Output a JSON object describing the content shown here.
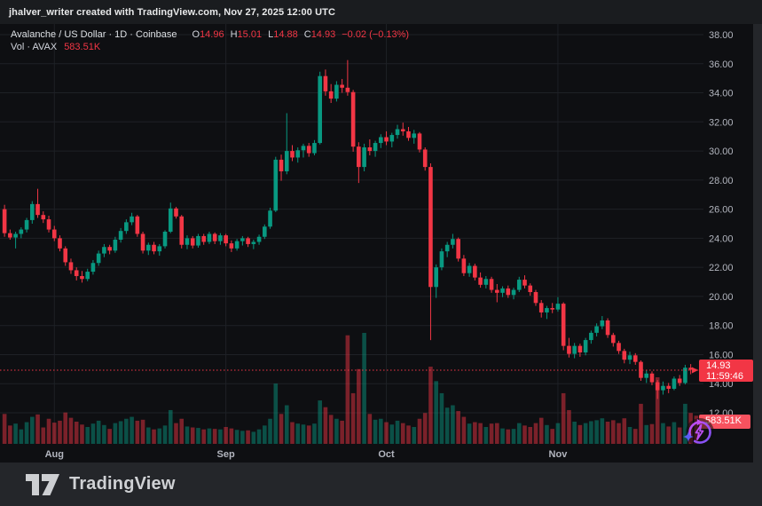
{
  "attribution": {
    "text": "jhalver_writer created with TradingView.com, Nov 27, 2025 12:00 UTC"
  },
  "legend": {
    "title": "Avalanche / US Dollar · 1D · Coinbase",
    "o_label": "O",
    "o_value": "14.96",
    "h_label": "H",
    "h_value": "15.01",
    "l_label": "L",
    "l_value": "14.88",
    "c_label": "C",
    "c_value": "14.93",
    "change": "−0.02 (−0.13%)",
    "vol_label": "Vol · AVAX",
    "vol_value": "583.51K"
  },
  "price_label": {
    "price": "14.93",
    "countdown": "11:59:46"
  },
  "volume_axis_label": {
    "value": "583.51K"
  },
  "footer": {
    "logo_text": "TradingView"
  },
  "colors": {
    "up": "#089981",
    "down": "#f23645",
    "vol_up": "rgba(8,153,129,0.48)",
    "vol_down": "rgba(242,54,69,0.48)",
    "grid": "#1e2126",
    "axis_text": "#b2b5be",
    "price_label_bg": "#f23645",
    "volume_label_bg": "#f7525f",
    "background": "#0e0f12",
    "frame": "#24262a"
  },
  "chart_data": {
    "type": "candlestick",
    "title": "Avalanche / US Dollar · 1D · Coinbase",
    "symbol": "AVAX/USD",
    "exchange": "Coinbase",
    "interval": "1D",
    "legend_last_values": {
      "open": 14.96,
      "high": 15.01,
      "low": 14.88,
      "close": 14.93,
      "change": -0.02,
      "change_pct": -0.13,
      "volume": "583.51K"
    },
    "y_axis": {
      "min": 12,
      "max": 38,
      "step": 2,
      "tick_labels": [
        "38.00",
        "36.00",
        "34.00",
        "32.00",
        "30.00",
        "28.00",
        "26.00",
        "24.00",
        "22.00",
        "20.00",
        "18.00",
        "16.00",
        "14.00",
        "12.00"
      ]
    },
    "x_axis": {
      "ticks": [
        {
          "label": "Aug",
          "index": 9
        },
        {
          "label": "Sep",
          "index": 40
        },
        {
          "label": "Oct",
          "index": 69
        },
        {
          "label": "Nov",
          "index": 100
        }
      ]
    },
    "last_price": 14.93,
    "countdown": "11:59:46",
    "grid": true,
    "series_format": [
      "open",
      "high",
      "low",
      "close",
      "volume_thousands"
    ],
    "candles": [
      [
        26.0,
        26.3,
        24.1,
        24.35,
        620
      ],
      [
        24.35,
        24.6,
        23.9,
        24.05,
        380
      ],
      [
        24.05,
        24.45,
        23.3,
        24.3,
        420
      ],
      [
        24.3,
        24.75,
        24.0,
        24.6,
        300
      ],
      [
        24.6,
        25.4,
        24.4,
        25.25,
        450
      ],
      [
        25.25,
        26.55,
        25.0,
        26.35,
        560
      ],
      [
        26.35,
        27.4,
        25.4,
        25.6,
        610
      ],
      [
        25.6,
        25.85,
        25.05,
        25.3,
        340
      ],
      [
        25.3,
        25.55,
        24.4,
        24.6,
        520
      ],
      [
        24.6,
        24.85,
        23.8,
        24.0,
        440
      ],
      [
        24.0,
        24.2,
        23.1,
        23.3,
        480
      ],
      [
        23.3,
        23.45,
        22.1,
        22.35,
        650
      ],
      [
        22.35,
        22.6,
        21.55,
        21.8,
        540
      ],
      [
        21.8,
        22.0,
        21.1,
        21.4,
        460
      ],
      [
        21.4,
        21.75,
        20.95,
        21.2,
        400
      ],
      [
        21.2,
        21.9,
        21.05,
        21.7,
        350
      ],
      [
        21.7,
        22.5,
        21.5,
        22.3,
        420
      ],
      [
        22.3,
        23.15,
        22.1,
        22.95,
        480
      ],
      [
        22.95,
        23.6,
        22.7,
        23.4,
        390
      ],
      [
        23.4,
        23.55,
        22.9,
        23.15,
        310
      ],
      [
        23.15,
        24.1,
        23.0,
        23.9,
        430
      ],
      [
        23.9,
        24.7,
        23.7,
        24.5,
        470
      ],
      [
        24.5,
        25.3,
        24.3,
        25.1,
        520
      ],
      [
        25.1,
        25.75,
        24.9,
        25.5,
        560
      ],
      [
        25.5,
        25.6,
        24.1,
        24.3,
        480
      ],
      [
        24.3,
        24.45,
        22.95,
        23.15,
        500
      ],
      [
        23.15,
        23.7,
        22.85,
        23.55,
        340
      ],
      [
        23.55,
        23.75,
        22.9,
        23.1,
        300
      ],
      [
        23.1,
        23.6,
        22.8,
        23.45,
        320
      ],
      [
        23.45,
        24.55,
        23.3,
        24.45,
        380
      ],
      [
        24.45,
        26.45,
        24.35,
        26.05,
        700
      ],
      [
        26.05,
        26.15,
        25.35,
        25.5,
        430
      ],
      [
        25.5,
        25.6,
        23.3,
        23.55,
        520
      ],
      [
        23.55,
        24.2,
        23.25,
        24.0,
        360
      ],
      [
        24.0,
        24.15,
        23.3,
        23.5,
        340
      ],
      [
        23.5,
        24.3,
        23.35,
        24.15,
        330
      ],
      [
        24.15,
        24.3,
        23.55,
        23.75,
        300
      ],
      [
        23.75,
        24.45,
        23.6,
        24.3,
        320
      ],
      [
        24.3,
        24.4,
        23.6,
        23.8,
        310
      ],
      [
        23.8,
        24.35,
        23.55,
        24.2,
        300
      ],
      [
        24.2,
        24.3,
        23.45,
        23.65,
        350
      ],
      [
        23.65,
        23.85,
        23.05,
        23.3,
        320
      ],
      [
        23.3,
        23.95,
        23.15,
        23.8,
        290
      ],
      [
        23.8,
        24.15,
        23.5,
        24.0,
        270
      ],
      [
        24.0,
        24.1,
        23.4,
        23.6,
        280
      ],
      [
        23.6,
        23.9,
        23.25,
        23.75,
        250
      ],
      [
        23.75,
        24.25,
        23.55,
        24.1,
        300
      ],
      [
        24.1,
        24.95,
        23.95,
        24.8,
        380
      ],
      [
        24.8,
        26.1,
        24.65,
        25.9,
        520
      ],
      [
        25.9,
        29.6,
        25.8,
        29.4,
        1250
      ],
      [
        29.4,
        29.75,
        27.95,
        28.6,
        620
      ],
      [
        28.6,
        32.6,
        28.4,
        30.0,
        800
      ],
      [
        30.0,
        30.4,
        29.3,
        29.55,
        450
      ],
      [
        29.55,
        30.25,
        29.2,
        30.05,
        420
      ],
      [
        30.05,
        30.5,
        29.55,
        30.35,
        400
      ],
      [
        30.35,
        30.55,
        29.6,
        29.85,
        380
      ],
      [
        29.85,
        30.75,
        29.7,
        30.55,
        420
      ],
      [
        30.55,
        35.45,
        30.45,
        35.15,
        900
      ],
      [
        35.15,
        35.6,
        33.8,
        34.1,
        760
      ],
      [
        34.1,
        34.6,
        33.3,
        33.6,
        600
      ],
      [
        33.6,
        34.8,
        33.4,
        34.55,
        520
      ],
      [
        34.55,
        34.95,
        34.0,
        34.35,
        480
      ],
      [
        34.35,
        36.25,
        33.8,
        34.05,
        2250
      ],
      [
        34.05,
        34.2,
        29.95,
        30.3,
        1050
      ],
      [
        30.3,
        30.6,
        27.8,
        28.9,
        1550
      ],
      [
        28.9,
        30.5,
        28.6,
        30.25,
        2300
      ],
      [
        30.25,
        30.8,
        29.7,
        30.0,
        620
      ],
      [
        30.0,
        30.7,
        29.6,
        30.55,
        500
      ],
      [
        30.55,
        31.15,
        30.2,
        30.95,
        520
      ],
      [
        30.95,
        31.35,
        30.4,
        30.65,
        450
      ],
      [
        30.65,
        31.25,
        30.25,
        31.1,
        400
      ],
      [
        31.1,
        31.8,
        30.85,
        31.5,
        480
      ],
      [
        31.5,
        31.95,
        31.05,
        31.35,
        430
      ],
      [
        31.35,
        31.65,
        30.7,
        30.9,
        380
      ],
      [
        30.9,
        31.45,
        30.5,
        31.2,
        350
      ],
      [
        31.2,
        31.3,
        29.9,
        30.1,
        520
      ],
      [
        30.1,
        30.25,
        28.65,
        28.9,
        640
      ],
      [
        28.9,
        29.15,
        17.0,
        20.65,
        1600
      ],
      [
        20.65,
        22.2,
        19.9,
        22.0,
        1300
      ],
      [
        22.0,
        23.3,
        21.8,
        23.1,
        1050
      ],
      [
        23.1,
        23.75,
        22.7,
        23.55,
        750
      ],
      [
        23.55,
        24.3,
        23.3,
        23.95,
        800
      ],
      [
        23.95,
        24.05,
        22.4,
        22.6,
        680
      ],
      [
        22.6,
        22.85,
        21.4,
        21.6,
        560
      ],
      [
        21.6,
        22.3,
        21.35,
        22.1,
        420
      ],
      [
        22.1,
        22.25,
        21.1,
        21.3,
        450
      ],
      [
        21.3,
        21.65,
        20.6,
        20.8,
        430
      ],
      [
        20.8,
        21.4,
        20.55,
        21.2,
        350
      ],
      [
        21.2,
        21.35,
        20.25,
        20.45,
        420
      ],
      [
        20.45,
        20.85,
        19.6,
        20.25,
        430
      ],
      [
        20.25,
        20.7,
        19.95,
        20.55,
        320
      ],
      [
        20.55,
        20.75,
        19.9,
        20.1,
        300
      ],
      [
        20.1,
        20.6,
        19.8,
        20.45,
        310
      ],
      [
        20.45,
        21.35,
        20.3,
        21.15,
        430
      ],
      [
        21.15,
        21.45,
        20.55,
        20.75,
        380
      ],
      [
        20.75,
        20.9,
        20.05,
        20.3,
        350
      ],
      [
        20.3,
        20.45,
        19.35,
        19.55,
        430
      ],
      [
        19.55,
        19.75,
        18.55,
        18.9,
        540
      ],
      [
        18.9,
        19.35,
        18.45,
        19.2,
        390
      ],
      [
        19.2,
        19.55,
        18.85,
        19.1,
        310
      ],
      [
        19.1,
        19.95,
        18.95,
        19.5,
        430
      ],
      [
        19.5,
        19.6,
        16.3,
        16.6,
        1050
      ],
      [
        16.6,
        17.15,
        15.8,
        16.05,
        700
      ],
      [
        16.05,
        16.8,
        15.75,
        16.6,
        460
      ],
      [
        16.6,
        16.75,
        15.85,
        16.15,
        390
      ],
      [
        16.15,
        17.15,
        15.95,
        17.0,
        430
      ],
      [
        17.0,
        17.65,
        16.75,
        17.5,
        470
      ],
      [
        17.5,
        18.15,
        17.25,
        17.95,
        490
      ],
      [
        17.95,
        18.65,
        17.75,
        18.35,
        530
      ],
      [
        18.35,
        18.5,
        17.15,
        17.35,
        460
      ],
      [
        17.35,
        17.5,
        16.55,
        16.8,
        490
      ],
      [
        16.8,
        16.95,
        16.05,
        16.25,
        430
      ],
      [
        16.25,
        16.4,
        15.4,
        15.65,
        530
      ],
      [
        15.65,
        16.2,
        15.35,
        15.95,
        350
      ],
      [
        15.95,
        16.1,
        15.3,
        15.5,
        310
      ],
      [
        15.5,
        15.6,
        14.2,
        14.4,
        830
      ],
      [
        14.4,
        14.95,
        14.05,
        14.7,
        390
      ],
      [
        14.7,
        14.85,
        13.9,
        14.1,
        410
      ],
      [
        14.1,
        14.25,
        12.95,
        13.55,
        1380
      ],
      [
        13.55,
        14.15,
        13.25,
        13.85,
        430
      ],
      [
        13.85,
        14.05,
        13.35,
        13.65,
        360
      ],
      [
        13.65,
        14.5,
        13.55,
        14.35,
        450
      ],
      [
        14.35,
        14.6,
        13.85,
        14.05,
        340
      ],
      [
        14.05,
        15.3,
        13.95,
        15.1,
        830
      ],
      [
        15.1,
        15.35,
        14.65,
        14.96,
        640
      ],
      [
        14.96,
        15.01,
        14.88,
        14.93,
        583.51
      ]
    ]
  }
}
